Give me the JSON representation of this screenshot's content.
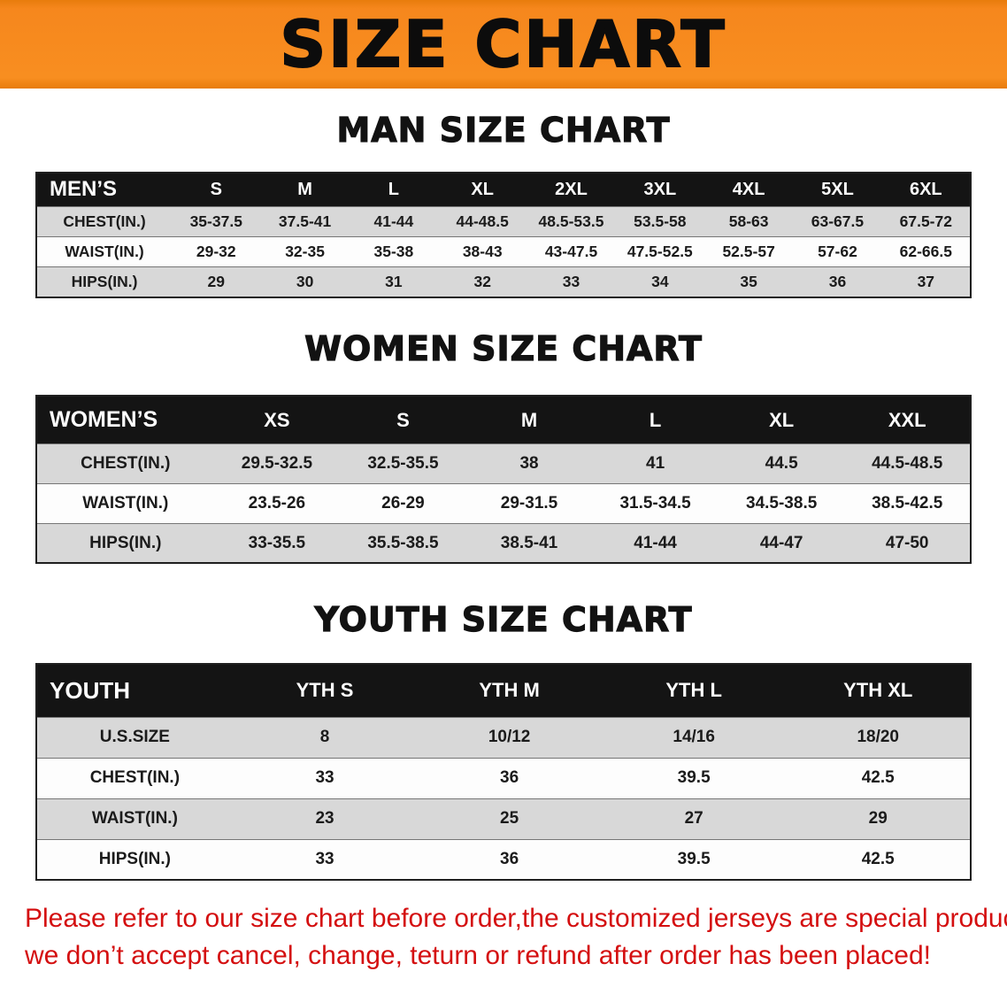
{
  "banner": {
    "title": "SIZE CHART",
    "bg_color": "#f6871d",
    "text_color": "#0c0c0c"
  },
  "sections": [
    {
      "id": "men",
      "heading": "MAN SIZE CHART",
      "table": {
        "header": [
          "MEN’S",
          "S",
          "M",
          "L",
          "XL",
          "2XL",
          "3XL",
          "4XL",
          "5XL",
          "6XL"
        ],
        "rows": [
          {
            "label": "CHEST(IN.)",
            "values": [
              "35-37.5",
              "37.5-41",
              "41-44",
              "44-48.5",
              "48.5-53.5",
              "53.5-58",
              "58-63",
              "63-67.5",
              "67.5-72"
            ]
          },
          {
            "label": "WAIST(IN.)",
            "values": [
              "29-32",
              "32-35",
              "35-38",
              "38-43",
              "43-47.5",
              "47.5-52.5",
              "52.5-57",
              "57-62",
              "62-66.5"
            ]
          },
          {
            "label": "HIPS(IN.)",
            "values": [
              "29",
              "30",
              "31",
              "32",
              "33",
              "34",
              "35",
              "36",
              "37"
            ]
          }
        ]
      }
    },
    {
      "id": "women",
      "heading": "WOMEN SIZE CHART",
      "table": {
        "header": [
          "WOMEN’S",
          "XS",
          "S",
          "M",
          "L",
          "XL",
          "XXL"
        ],
        "rows": [
          {
            "label": "CHEST(IN.)",
            "values": [
              "29.5-32.5",
              "32.5-35.5",
              "38",
              "41",
              "44.5",
              "44.5-48.5"
            ]
          },
          {
            "label": "WAIST(IN.)",
            "values": [
              "23.5-26",
              "26-29",
              "29-31.5",
              "31.5-34.5",
              "34.5-38.5",
              "38.5-42.5"
            ]
          },
          {
            "label": "HIPS(IN.)",
            "values": [
              "33-35.5",
              "35.5-38.5",
              "38.5-41",
              "41-44",
              "44-47",
              "47-50"
            ]
          }
        ]
      }
    },
    {
      "id": "youth",
      "heading": "YOUTH SIZE CHART",
      "table": {
        "header": [
          "YOUTH",
          "YTH S",
          "YTH M",
          "YTH L",
          "YTH XL"
        ],
        "rows": [
          {
            "label": "U.S.SIZE",
            "values": [
              "8",
              "10/12",
              "14/16",
              "18/20"
            ]
          },
          {
            "label": "CHEST(IN.)",
            "values": [
              "33",
              "36",
              "39.5",
              "42.5"
            ]
          },
          {
            "label": "WAIST(IN.)",
            "values": [
              "23",
              "25",
              "27",
              "29"
            ]
          },
          {
            "label": "HIPS(IN.)",
            "values": [
              "33",
              "36",
              "39.5",
              "42.5"
            ]
          }
        ]
      }
    }
  ],
  "footnote": {
    "text_color": "#d40f10",
    "lines": [
      "Please refer to our size chart before order,the customized jerseys are special products,",
      "we don’t accept cancel, change, teturn or refund after order has been placed!"
    ]
  }
}
